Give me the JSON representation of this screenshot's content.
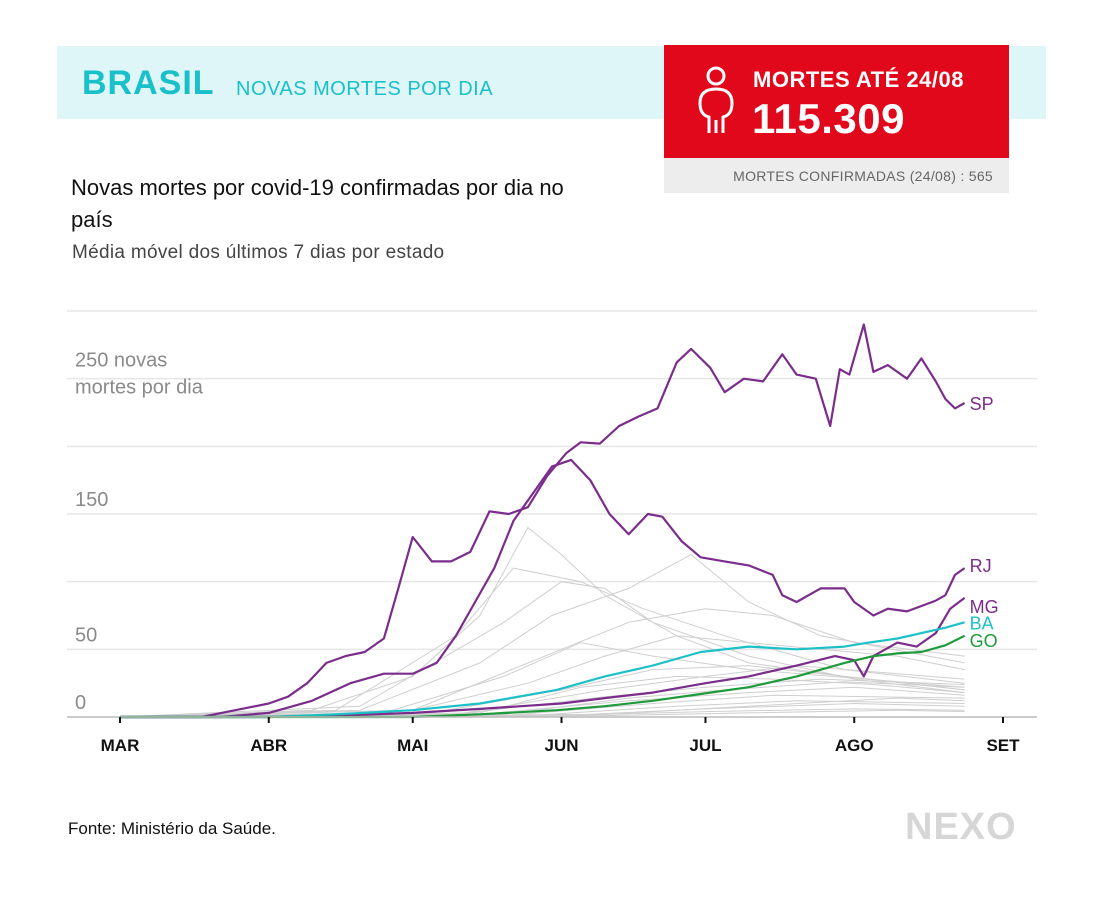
{
  "header": {
    "country": "BRASIL",
    "subtitle": "NOVAS MORTES POR DIA"
  },
  "deaths_box": {
    "label": "MORTES ATÉ 24/08",
    "value": "115.309",
    "confirmed_text": "MORTES CONFIRMADAS (24/08) : 565",
    "icon": "person-icon"
  },
  "chart_text": {
    "title": "Novas mortes por covid-19 confirmadas por dia no país",
    "subtitle": "Média móvel dos últimos 7 dias por estado"
  },
  "source": "Fonte: Ministério da Saúde.",
  "logo": "NEXO",
  "colors": {
    "SP": "#7b2d8b",
    "RJ": "#7b2d8b",
    "MG": "#7b2d8b",
    "BA": "#1ec0c8",
    "GO": "#1e9a3c",
    "other": "#cfcfcf",
    "header_bg": "#dff6f8",
    "accent": "#18c0c9",
    "alert": "#e2081c"
  },
  "chart_data": {
    "type": "line",
    "x_start": "2020-03-01",
    "x_end": "2020-09-05",
    "ylim": [
      0,
      300
    ],
    "y_ticks": [
      0,
      50,
      100,
      150,
      200,
      250,
      300
    ],
    "y_tick_labels": [
      {
        "value": 0,
        "label": "0"
      },
      {
        "value": 50,
        "label": "50"
      },
      {
        "value": 150,
        "label": "150"
      },
      {
        "value": 250,
        "label": "250 novas mortes por dia"
      }
    ],
    "x_ticks": [
      {
        "date": "2020-03-01",
        "label": "MAR"
      },
      {
        "date": "2020-04-01",
        "label": "ABR"
      },
      {
        "date": "2020-05-01",
        "label": "MAI"
      },
      {
        "date": "2020-06-01",
        "label": "JUN"
      },
      {
        "date": "2020-07-01",
        "label": "JUL"
      },
      {
        "date": "2020-08-01",
        "label": "AGO"
      },
      {
        "date": "2020-09-01",
        "label": "SET"
      }
    ],
    "series": [
      {
        "name": "SP",
        "color": "#7b2d8b",
        "points": [
          [
            "2020-03-01",
            0
          ],
          [
            "2020-03-18",
            0
          ],
          [
            "2020-03-25",
            5
          ],
          [
            "2020-04-01",
            10
          ],
          [
            "2020-04-05",
            15
          ],
          [
            "2020-04-09",
            25
          ],
          [
            "2020-04-13",
            40
          ],
          [
            "2020-04-17",
            45
          ],
          [
            "2020-04-21",
            48
          ],
          [
            "2020-04-25",
            58
          ],
          [
            "2020-04-28",
            95
          ],
          [
            "2020-05-01",
            133
          ],
          [
            "2020-05-05",
            115
          ],
          [
            "2020-05-09",
            115
          ],
          [
            "2020-05-13",
            122
          ],
          [
            "2020-05-17",
            152
          ],
          [
            "2020-05-21",
            150
          ],
          [
            "2020-05-25",
            155
          ],
          [
            "2020-05-29",
            178
          ],
          [
            "2020-06-02",
            195
          ],
          [
            "2020-06-05",
            203
          ],
          [
            "2020-06-09",
            202
          ],
          [
            "2020-06-13",
            215
          ],
          [
            "2020-06-17",
            222
          ],
          [
            "2020-06-21",
            228
          ],
          [
            "2020-06-25",
            262
          ],
          [
            "2020-06-28",
            272
          ],
          [
            "2020-07-02",
            258
          ],
          [
            "2020-07-05",
            240
          ],
          [
            "2020-07-09",
            250
          ],
          [
            "2020-07-13",
            248
          ],
          [
            "2020-07-17",
            268
          ],
          [
            "2020-07-20",
            253
          ],
          [
            "2020-07-24",
            250
          ],
          [
            "2020-07-27",
            215
          ],
          [
            "2020-07-29",
            257
          ],
          [
            "2020-07-31",
            253
          ],
          [
            "2020-08-03",
            290
          ],
          [
            "2020-08-05",
            255
          ],
          [
            "2020-08-08",
            260
          ],
          [
            "2020-08-12",
            250
          ],
          [
            "2020-08-15",
            265
          ],
          [
            "2020-08-18",
            248
          ],
          [
            "2020-08-20",
            235
          ],
          [
            "2020-08-22",
            228
          ],
          [
            "2020-08-24",
            232
          ]
        ]
      },
      {
        "name": "RJ",
        "color": "#7b2d8b",
        "points": [
          [
            "2020-03-01",
            0
          ],
          [
            "2020-03-22",
            0
          ],
          [
            "2020-04-01",
            3
          ],
          [
            "2020-04-10",
            12
          ],
          [
            "2020-04-18",
            25
          ],
          [
            "2020-04-25",
            32
          ],
          [
            "2020-05-01",
            32
          ],
          [
            "2020-05-06",
            40
          ],
          [
            "2020-05-10",
            60
          ],
          [
            "2020-05-14",
            85
          ],
          [
            "2020-05-18",
            110
          ],
          [
            "2020-05-22",
            145
          ],
          [
            "2020-05-26",
            165
          ],
          [
            "2020-05-30",
            185
          ],
          [
            "2020-06-03",
            190
          ],
          [
            "2020-06-07",
            175
          ],
          [
            "2020-06-11",
            150
          ],
          [
            "2020-06-15",
            135
          ],
          [
            "2020-06-19",
            150
          ],
          [
            "2020-06-22",
            148
          ],
          [
            "2020-06-26",
            130
          ],
          [
            "2020-06-30",
            118
          ],
          [
            "2020-07-05",
            115
          ],
          [
            "2020-07-10",
            112
          ],
          [
            "2020-07-15",
            105
          ],
          [
            "2020-07-17",
            90
          ],
          [
            "2020-07-20",
            85
          ],
          [
            "2020-07-25",
            95
          ],
          [
            "2020-07-30",
            95
          ],
          [
            "2020-08-01",
            85
          ],
          [
            "2020-08-05",
            75
          ],
          [
            "2020-08-08",
            80
          ],
          [
            "2020-08-12",
            78
          ],
          [
            "2020-08-15",
            82
          ],
          [
            "2020-08-18",
            86
          ],
          [
            "2020-08-20",
            90
          ],
          [
            "2020-08-22",
            105
          ],
          [
            "2020-08-24",
            110
          ]
        ]
      },
      {
        "name": "MG",
        "color": "#7b2d8b",
        "points": [
          [
            "2020-03-01",
            0
          ],
          [
            "2020-04-01",
            0
          ],
          [
            "2020-04-15",
            1
          ],
          [
            "2020-05-01",
            3
          ],
          [
            "2020-05-15",
            6
          ],
          [
            "2020-06-01",
            10
          ],
          [
            "2020-06-10",
            14
          ],
          [
            "2020-06-20",
            18
          ],
          [
            "2020-07-01",
            25
          ],
          [
            "2020-07-10",
            30
          ],
          [
            "2020-07-20",
            38
          ],
          [
            "2020-07-28",
            45
          ],
          [
            "2020-08-01",
            42
          ],
          [
            "2020-08-03",
            30
          ],
          [
            "2020-08-05",
            45
          ],
          [
            "2020-08-10",
            55
          ],
          [
            "2020-08-14",
            52
          ],
          [
            "2020-08-18",
            62
          ],
          [
            "2020-08-21",
            80
          ],
          [
            "2020-08-24",
            88
          ]
        ]
      },
      {
        "name": "BA",
        "color": "#1ec0c8",
        "points": [
          [
            "2020-03-01",
            0
          ],
          [
            "2020-04-01",
            0
          ],
          [
            "2020-04-15",
            2
          ],
          [
            "2020-05-01",
            5
          ],
          [
            "2020-05-15",
            10
          ],
          [
            "2020-05-31",
            20
          ],
          [
            "2020-06-10",
            30
          ],
          [
            "2020-06-20",
            38
          ],
          [
            "2020-06-30",
            48
          ],
          [
            "2020-07-10",
            52
          ],
          [
            "2020-07-20",
            50
          ],
          [
            "2020-07-30",
            52
          ],
          [
            "2020-08-04",
            55
          ],
          [
            "2020-08-10",
            58
          ],
          [
            "2020-08-15",
            62
          ],
          [
            "2020-08-20",
            66
          ],
          [
            "2020-08-24",
            70
          ]
        ]
      },
      {
        "name": "GO",
        "color": "#1e9a3c",
        "points": [
          [
            "2020-03-01",
            0
          ],
          [
            "2020-05-01",
            0
          ],
          [
            "2020-05-15",
            2
          ],
          [
            "2020-05-31",
            5
          ],
          [
            "2020-06-10",
            8
          ],
          [
            "2020-06-20",
            12
          ],
          [
            "2020-06-30",
            17
          ],
          [
            "2020-07-10",
            22
          ],
          [
            "2020-07-20",
            30
          ],
          [
            "2020-07-30",
            40
          ],
          [
            "2020-08-05",
            45
          ],
          [
            "2020-08-10",
            47
          ],
          [
            "2020-08-15",
            48
          ],
          [
            "2020-08-20",
            53
          ],
          [
            "2020-08-24",
            60
          ]
        ]
      }
    ],
    "other_states": [
      [
        [
          "2020-03-01",
          0
        ],
        [
          "2020-04-10",
          5
        ],
        [
          "2020-05-01",
          30
        ],
        [
          "2020-05-15",
          75
        ],
        [
          "2020-05-25",
          140
        ],
        [
          "2020-06-01",
          120
        ],
        [
          "2020-06-10",
          90
        ],
        [
          "2020-06-25",
          60
        ],
        [
          "2020-07-10",
          40
        ],
        [
          "2020-07-30",
          30
        ],
        [
          "2020-08-24",
          20
        ]
      ],
      [
        [
          "2020-03-01",
          0
        ],
        [
          "2020-04-15",
          5
        ],
        [
          "2020-05-10",
          60
        ],
        [
          "2020-05-22",
          110
        ],
        [
          "2020-06-05",
          100
        ],
        [
          "2020-06-18",
          80
        ],
        [
          "2020-07-05",
          60
        ],
        [
          "2020-07-30",
          35
        ],
        [
          "2020-08-24",
          25
        ]
      ],
      [
        [
          "2020-03-01",
          0
        ],
        [
          "2020-04-20",
          8
        ],
        [
          "2020-05-20",
          70
        ],
        [
          "2020-06-01",
          100
        ],
        [
          "2020-06-10",
          95
        ],
        [
          "2020-06-20",
          70
        ],
        [
          "2020-07-10",
          45
        ],
        [
          "2020-08-01",
          28
        ],
        [
          "2020-08-24",
          18
        ]
      ],
      [
        [
          "2020-03-01",
          0
        ],
        [
          "2020-04-20",
          5
        ],
        [
          "2020-05-15",
          40
        ],
        [
          "2020-05-30",
          75
        ],
        [
          "2020-06-15",
          95
        ],
        [
          "2020-06-28",
          120
        ],
        [
          "2020-07-10",
          85
        ],
        [
          "2020-07-25",
          60
        ],
        [
          "2020-08-24",
          40
        ]
      ],
      [
        [
          "2020-03-01",
          0
        ],
        [
          "2020-05-01",
          5
        ],
        [
          "2020-05-25",
          40
        ],
        [
          "2020-06-15",
          70
        ],
        [
          "2020-07-01",
          80
        ],
        [
          "2020-07-15",
          75
        ],
        [
          "2020-08-01",
          55
        ],
        [
          "2020-08-24",
          45
        ]
      ],
      [
        [
          "2020-03-01",
          0
        ],
        [
          "2020-05-01",
          5
        ],
        [
          "2020-05-25",
          25
        ],
        [
          "2020-06-10",
          45
        ],
        [
          "2020-06-25",
          60
        ],
        [
          "2020-07-10",
          55
        ],
        [
          "2020-07-25",
          50
        ],
        [
          "2020-08-10",
          45
        ],
        [
          "2020-08-24",
          35
        ]
      ],
      [
        [
          "2020-03-01",
          0
        ],
        [
          "2020-04-25",
          3
        ],
        [
          "2020-05-20",
          30
        ],
        [
          "2020-06-05",
          55
        ],
        [
          "2020-06-20",
          45
        ],
        [
          "2020-07-10",
          35
        ],
        [
          "2020-08-24",
          22
        ]
      ],
      [
        [
          "2020-03-01",
          0
        ],
        [
          "2020-05-05",
          3
        ],
        [
          "2020-06-01",
          20
        ],
        [
          "2020-06-20",
          35
        ],
        [
          "2020-07-10",
          38
        ],
        [
          "2020-07-30",
          30
        ],
        [
          "2020-08-24",
          20
        ]
      ],
      [
        [
          "2020-03-01",
          0
        ],
        [
          "2020-05-10",
          2
        ],
        [
          "2020-06-10",
          20
        ],
        [
          "2020-07-01",
          30
        ],
        [
          "2020-07-20",
          38
        ],
        [
          "2020-08-10",
          32
        ],
        [
          "2020-08-24",
          28
        ]
      ],
      [
        [
          "2020-03-01",
          0
        ],
        [
          "2020-05-10",
          2
        ],
        [
          "2020-06-10",
          15
        ],
        [
          "2020-07-01",
          22
        ],
        [
          "2020-07-25",
          28
        ],
        [
          "2020-08-24",
          24
        ]
      ],
      [
        [
          "2020-03-01",
          0
        ],
        [
          "2020-05-15",
          2
        ],
        [
          "2020-06-15",
          12
        ],
        [
          "2020-07-10",
          18
        ],
        [
          "2020-08-01",
          22
        ],
        [
          "2020-08-24",
          16
        ]
      ],
      [
        [
          "2020-03-01",
          0
        ],
        [
          "2020-05-20",
          1
        ],
        [
          "2020-06-20",
          10
        ],
        [
          "2020-07-15",
          16
        ],
        [
          "2020-08-24",
          14
        ]
      ],
      [
        [
          "2020-03-01",
          0
        ],
        [
          "2020-05-25",
          1
        ],
        [
          "2020-06-25",
          8
        ],
        [
          "2020-07-20",
          12
        ],
        [
          "2020-08-24",
          10
        ]
      ],
      [
        [
          "2020-03-01",
          0
        ],
        [
          "2020-06-01",
          1
        ],
        [
          "2020-07-01",
          6
        ],
        [
          "2020-08-01",
          10
        ],
        [
          "2020-08-24",
          8
        ]
      ],
      [
        [
          "2020-03-01",
          0
        ],
        [
          "2020-06-01",
          1
        ],
        [
          "2020-07-01",
          4
        ],
        [
          "2020-08-01",
          6
        ],
        [
          "2020-08-24",
          5
        ]
      ],
      [
        [
          "2020-03-01",
          0
        ],
        [
          "2020-05-15",
          3
        ],
        [
          "2020-06-05",
          22
        ],
        [
          "2020-06-25",
          30
        ],
        [
          "2020-07-15",
          28
        ],
        [
          "2020-08-05",
          24
        ],
        [
          "2020-08-24",
          18
        ]
      ],
      [
        [
          "2020-03-01",
          0
        ],
        [
          "2020-05-20",
          2
        ],
        [
          "2020-06-15",
          14
        ],
        [
          "2020-07-05",
          20
        ],
        [
          "2020-07-30",
          26
        ],
        [
          "2020-08-24",
          22
        ]
      ],
      [
        [
          "2020-03-01",
          0
        ],
        [
          "2020-06-10",
          2
        ],
        [
          "2020-07-10",
          8
        ],
        [
          "2020-08-10",
          14
        ],
        [
          "2020-08-24",
          12
        ]
      ],
      [
        [
          "2020-03-01",
          0
        ],
        [
          "2020-06-10",
          1
        ],
        [
          "2020-07-10",
          3
        ],
        [
          "2020-08-10",
          5
        ],
        [
          "2020-08-24",
          4
        ]
      ]
    ]
  }
}
